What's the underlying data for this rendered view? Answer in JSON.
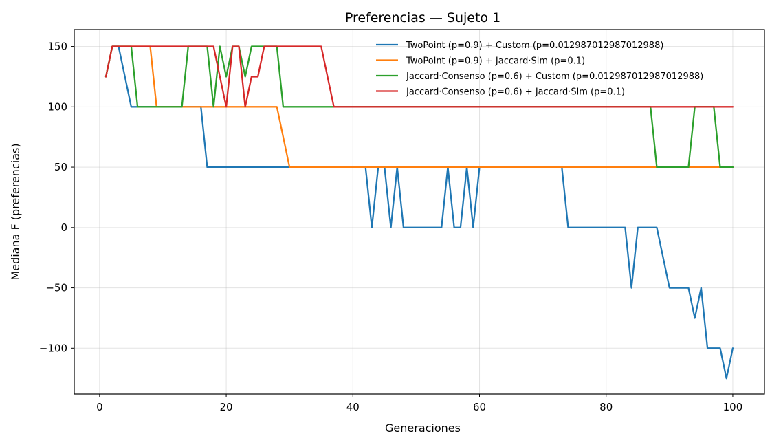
{
  "chart_data": {
    "type": "line",
    "title": "Preferencias — Sujeto 1",
    "xlabel": "Generaciones",
    "ylabel": "Mediana F (preferencias)",
    "xlim": [
      -4,
      105
    ],
    "ylim": [
      -138,
      164
    ],
    "xticks": [
      0,
      20,
      40,
      60,
      80,
      100
    ],
    "yticks": [
      -100,
      -50,
      0,
      50,
      100,
      150
    ],
    "grid": true,
    "legend_position": "upper-right",
    "series": [
      {
        "name": "TwoPoint (p=0.9) + Custom (p=0.012987012987012988)",
        "color": "#1f77b4",
        "points": [
          [
            1,
            125
          ],
          [
            2,
            150
          ],
          [
            3,
            150
          ],
          [
            5,
            100
          ],
          [
            6,
            100
          ],
          [
            16,
            100
          ],
          [
            17,
            50
          ],
          [
            42,
            50
          ],
          [
            43,
            0
          ],
          [
            44,
            50
          ],
          [
            45,
            50
          ],
          [
            46,
            0
          ],
          [
            47,
            50
          ],
          [
            48,
            0
          ],
          [
            54,
            0
          ],
          [
            55,
            50
          ],
          [
            56,
            0
          ],
          [
            57,
            0
          ],
          [
            58,
            50
          ],
          [
            59,
            0
          ],
          [
            60,
            50
          ],
          [
            73,
            50
          ],
          [
            74,
            0
          ],
          [
            83,
            0
          ],
          [
            84,
            -50
          ],
          [
            85,
            0
          ],
          [
            88,
            0
          ],
          [
            90,
            -50
          ],
          [
            93,
            -50
          ],
          [
            94,
            -75
          ],
          [
            95,
            -50
          ],
          [
            96,
            -100
          ],
          [
            98,
            -100
          ],
          [
            99,
            -125
          ],
          [
            100,
            -100
          ]
        ]
      },
      {
        "name": "TwoPoint (p=0.9) + Jaccard·Sim (p=0.1)",
        "color": "#ff7f0e",
        "points": [
          [
            1,
            125
          ],
          [
            2,
            150
          ],
          [
            8,
            150
          ],
          [
            9,
            100
          ],
          [
            28,
            100
          ],
          [
            30,
            50
          ],
          [
            100,
            50
          ]
        ]
      },
      {
        "name": "Jaccard·Consenso (p=0.6) + Custom (p=0.012987012987012988)",
        "color": "#2ca02c",
        "points": [
          [
            1,
            125
          ],
          [
            2,
            150
          ],
          [
            5,
            150
          ],
          [
            6,
            100
          ],
          [
            13,
            100
          ],
          [
            14,
            150
          ],
          [
            17,
            150
          ],
          [
            18,
            100
          ],
          [
            19,
            150
          ],
          [
            20,
            125
          ],
          [
            21,
            150
          ],
          [
            22,
            150
          ],
          [
            23,
            125
          ],
          [
            24,
            150
          ],
          [
            28,
            150
          ],
          [
            29,
            100
          ],
          [
            87,
            100
          ],
          [
            87.5,
            75
          ],
          [
            88,
            50
          ],
          [
            93,
            50
          ],
          [
            94,
            100
          ],
          [
            97,
            100
          ],
          [
            98,
            50
          ],
          [
            100,
            50
          ]
        ]
      },
      {
        "name": "Jaccard·Consenso (p=0.6) + Jaccard·Sim (p=0.1)",
        "color": "#d62728",
        "points": [
          [
            1,
            125
          ],
          [
            2,
            150
          ],
          [
            18,
            150
          ],
          [
            20,
            100
          ],
          [
            21,
            150
          ],
          [
            22,
            150
          ],
          [
            23,
            100
          ],
          [
            24,
            125
          ],
          [
            25,
            125
          ],
          [
            26,
            150
          ],
          [
            35,
            150
          ],
          [
            37,
            100
          ],
          [
            100,
            100
          ]
        ]
      }
    ]
  }
}
